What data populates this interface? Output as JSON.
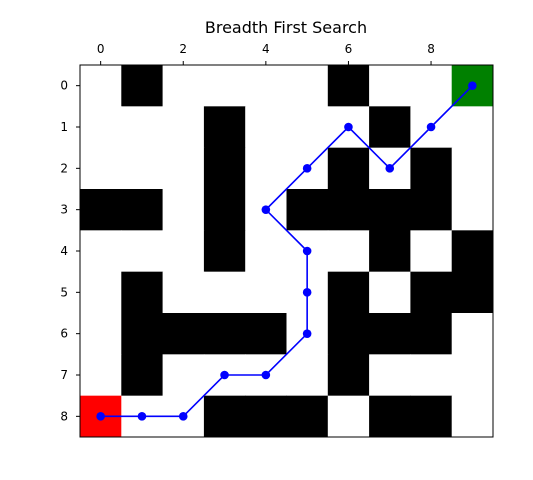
{
  "chart_data": {
    "type": "heatmap",
    "title": "Breadth First Search",
    "xlabel": "",
    "ylabel": "",
    "x_axis_position": "top",
    "x_ticks": [
      0,
      2,
      4,
      6,
      8
    ],
    "y_ticks": [
      0,
      1,
      2,
      3,
      4,
      5,
      6,
      7,
      8
    ],
    "x_tick_labels": [
      "0",
      "2",
      "4",
      "6",
      "8"
    ],
    "y_tick_labels": [
      "0",
      "1",
      "2",
      "3",
      "4",
      "5",
      "6",
      "7",
      "8"
    ],
    "xlim": [
      -0.5,
      9.5
    ],
    "ylim": [
      8.5,
      -0.5
    ],
    "grid": false,
    "wall_color": "#000000",
    "free_color": "#ffffff",
    "start_color": "#ff0000",
    "goal_color": "#008000",
    "path_color": "#0000ff",
    "start": [
      0,
      8
    ],
    "goal": [
      9,
      0
    ],
    "grid_values": [
      [
        0,
        1,
        0,
        0,
        0,
        0,
        1,
        0,
        0,
        0
      ],
      [
        0,
        0,
        0,
        1,
        0,
        0,
        0,
        1,
        0,
        0
      ],
      [
        0,
        0,
        0,
        1,
        0,
        0,
        1,
        0,
        1,
        0
      ],
      [
        1,
        1,
        0,
        1,
        0,
        1,
        1,
        1,
        1,
        0
      ],
      [
        0,
        0,
        0,
        1,
        0,
        0,
        0,
        1,
        0,
        1
      ],
      [
        0,
        1,
        0,
        0,
        0,
        0,
        1,
        0,
        1,
        1
      ],
      [
        0,
        1,
        1,
        1,
        1,
        0,
        1,
        1,
        1,
        0
      ],
      [
        0,
        1,
        0,
        0,
        0,
        0,
        1,
        0,
        0,
        0
      ],
      [
        0,
        0,
        0,
        1,
        1,
        1,
        0,
        1,
        1,
        0
      ]
    ],
    "path": [
      [
        0,
        8
      ],
      [
        1,
        8
      ],
      [
        2,
        8
      ],
      [
        3,
        7
      ],
      [
        4,
        7
      ],
      [
        5,
        6
      ],
      [
        5,
        5
      ],
      [
        5,
        4
      ],
      [
        4,
        3
      ],
      [
        5,
        2
      ],
      [
        6,
        1
      ],
      [
        7,
        2
      ],
      [
        8,
        1
      ],
      [
        9,
        0
      ]
    ]
  }
}
